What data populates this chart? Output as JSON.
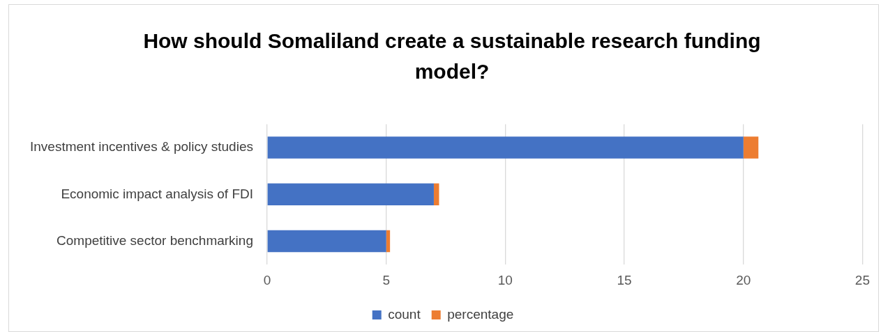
{
  "chart_data": {
    "type": "bar",
    "orientation": "horizontal",
    "stacked": true,
    "title": "How should Somaliland create a sustainable research funding model?",
    "categories": [
      "Investment incentives & policy studies",
      "Economic impact analysis of FDI",
      "Competitive sector benchmarking"
    ],
    "series": [
      {
        "name": "count",
        "color": "#4472c4",
        "values": [
          20,
          7,
          5
        ]
      },
      {
        "name": "percentage",
        "color": "#ed7d31",
        "values": [
          0.63,
          0.22,
          0.16
        ]
      }
    ],
    "xlim": [
      0,
      25
    ],
    "xticks": [
      0,
      5,
      10,
      15,
      20,
      25
    ],
    "grid": "x",
    "legend": "bottom"
  }
}
